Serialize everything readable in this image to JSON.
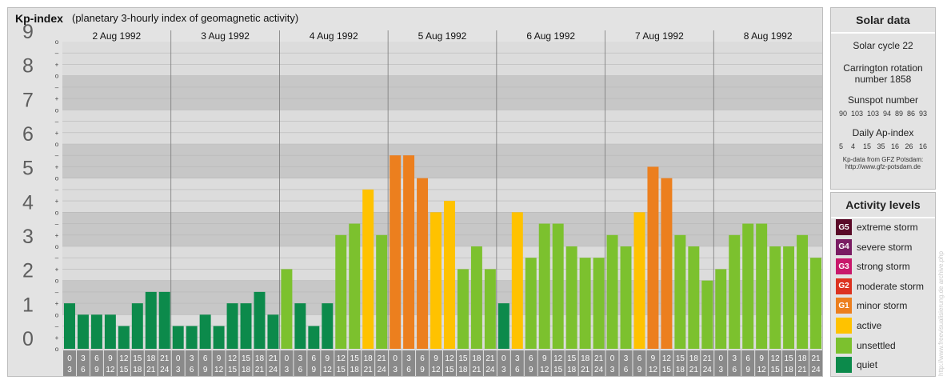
{
  "header": {
    "title": "Kp-index",
    "subtitle": "(planetary 3-hourly index of geomagnetic activity)"
  },
  "chart_data": {
    "type": "bar",
    "y_ticks": [
      "0",
      "1",
      "2",
      "3",
      "4",
      "5",
      "6",
      "7",
      "8",
      "9"
    ],
    "ylim": [
      0,
      9
    ],
    "minor_marks": [
      "o",
      "+",
      "–"
    ],
    "days": [
      "2 Aug 1992",
      "3 Aug 1992",
      "4 Aug 1992",
      "5 Aug 1992",
      "6 Aug 1992",
      "7 Aug 1992",
      "8 Aug 1992"
    ],
    "hour_ranges": [
      [
        "0",
        "3"
      ],
      [
        "3",
        "6"
      ],
      [
        "6",
        "9"
      ],
      [
        "9",
        "12"
      ],
      [
        "12",
        "15"
      ],
      [
        "15",
        "18"
      ],
      [
        "18",
        "21"
      ],
      [
        "21",
        "24"
      ]
    ],
    "values": [
      1.333,
      1.0,
      1.0,
      1.0,
      0.667,
      1.333,
      1.667,
      1.667,
      0.667,
      0.667,
      1.0,
      0.667,
      1.333,
      1.333,
      1.667,
      1.0,
      2.333,
      1.333,
      0.667,
      1.333,
      3.333,
      3.667,
      4.667,
      3.333,
      5.667,
      5.667,
      5.0,
      4.0,
      4.333,
      2.333,
      3.0,
      2.333,
      1.333,
      4.0,
      2.667,
      3.667,
      3.667,
      3.0,
      2.667,
      2.667,
      3.333,
      3.0,
      4.0,
      5.333,
      5.0,
      3.333,
      3.0,
      2.0,
      2.333,
      3.333,
      3.667,
      3.667,
      3.0,
      3.0,
      3.333,
      2.667
    ],
    "colors": {
      "quiet": "#0c8a4b",
      "unsettled": "#7cc12e",
      "active": "#ffc200",
      "G1": "#ec7f1e",
      "G2": "#dc3220",
      "G3": "#c8186b",
      "G4": "#7a1d63",
      "G5": "#5a0a28"
    }
  },
  "solar": {
    "title": "Solar data",
    "solar_cycle": "Solar cycle 22",
    "carrington_line1": "Carrington rotation",
    "carrington_line2": "number 1858",
    "sunspot_label": "Sunspot number",
    "sunspot_values": "90  103  103  94  89  86  93",
    "ap_label": "Daily Ap-index",
    "ap_values": "5    4    15   35   16   26   16",
    "source_line1": "Kp-data from GFZ Potsdam:",
    "source_line2": "http://www.gfz-potsdam.de"
  },
  "activity": {
    "title": "Activity levels",
    "levels": [
      {
        "badge": "G5",
        "label": "extreme storm",
        "color": "#5a0a28"
      },
      {
        "badge": "G4",
        "label": "severe storm",
        "color": "#7a1d63"
      },
      {
        "badge": "G3",
        "label": "strong storm",
        "color": "#c8186b"
      },
      {
        "badge": "G2",
        "label": "moderate storm",
        "color": "#dc3220"
      },
      {
        "badge": "G1",
        "label": "minor storm",
        "color": "#ec7f1e"
      },
      {
        "badge": "",
        "label": "active",
        "color": "#ffc200"
      },
      {
        "badge": "",
        "label": "unsettled",
        "color": "#7cc12e"
      },
      {
        "badge": "",
        "label": "quiet",
        "color": "#0c8a4b"
      }
    ]
  },
  "watermark": "http://www.freevisualisierung.de archive.php"
}
